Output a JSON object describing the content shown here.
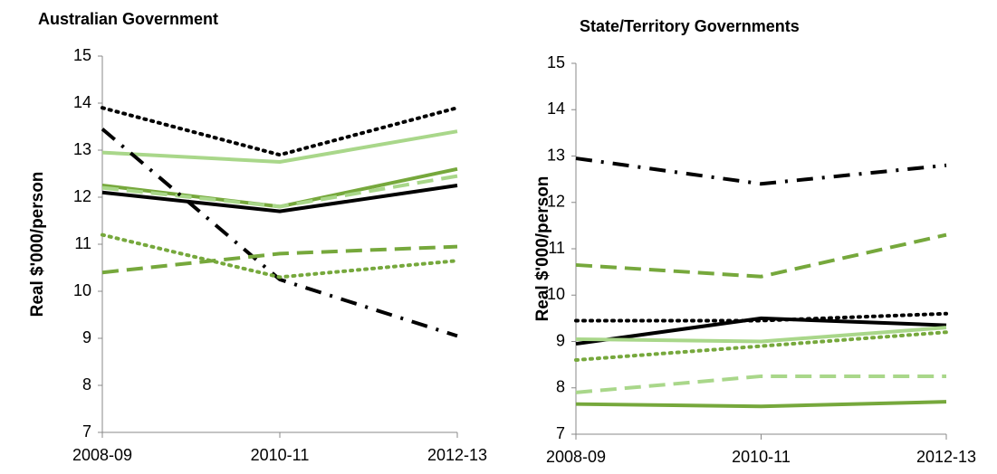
{
  "chart_data": [
    {
      "type": "line",
      "title": "Australian Government",
      "y_label": "Real $'000/person",
      "categories": [
        "2008-09",
        "2010-11",
        "2012-13"
      ],
      "ylim": [
        7,
        15
      ],
      "yticks": [
        7,
        8,
        9,
        10,
        11,
        12,
        13,
        14,
        15
      ],
      "series": [
        {
          "color": "#000000",
          "dash": "dot",
          "values": [
            13.9,
            12.9,
            13.9
          ]
        },
        {
          "color": "#a9d78a",
          "dash": "solid",
          "values": [
            12.95,
            12.75,
            13.4
          ]
        },
        {
          "color": "#76a83c",
          "dash": "solid",
          "values": [
            12.25,
            11.8,
            12.6
          ]
        },
        {
          "color": "#000000",
          "dash": "solid",
          "values": [
            12.1,
            11.7,
            12.25
          ]
        },
        {
          "color": "#a9d78a",
          "dash": "dash",
          "values": [
            12.2,
            11.8,
            12.45
          ]
        },
        {
          "color": "#000000",
          "dash": "dashdot",
          "values": [
            13.45,
            10.25,
            9.05
          ]
        },
        {
          "color": "#76a83c",
          "dash": "dot",
          "values": [
            11.2,
            10.3,
            10.65
          ]
        },
        {
          "color": "#76a83c",
          "dash": "dash",
          "values": [
            10.4,
            10.8,
            10.95
          ]
        }
      ]
    },
    {
      "type": "line",
      "title": "State/Territory Governments",
      "y_label": "Real $'000/person",
      "categories": [
        "2008-09",
        "2010-11",
        "2012-13"
      ],
      "ylim": [
        7,
        15
      ],
      "yticks": [
        7,
        8,
        9,
        10,
        11,
        12,
        13,
        14,
        15
      ],
      "series": [
        {
          "color": "#000000",
          "dash": "dashdot",
          "values": [
            12.95,
            12.4,
            12.8
          ]
        },
        {
          "color": "#76a83c",
          "dash": "dash",
          "values": [
            10.65,
            10.4,
            11.3
          ]
        },
        {
          "color": "#000000",
          "dash": "dot",
          "values": [
            9.45,
            9.45,
            9.6
          ]
        },
        {
          "color": "#000000",
          "dash": "solid",
          "values": [
            8.95,
            9.5,
            9.35
          ]
        },
        {
          "color": "#a9d78a",
          "dash": "solid",
          "values": [
            9.05,
            9.0,
            9.3
          ]
        },
        {
          "color": "#76a83c",
          "dash": "dot",
          "values": [
            8.6,
            8.9,
            9.2
          ]
        },
        {
          "color": "#a9d78a",
          "dash": "dash",
          "values": [
            7.9,
            8.25,
            8.25
          ]
        },
        {
          "color": "#76a83c",
          "dash": "solid",
          "values": [
            7.65,
            7.6,
            7.7
          ]
        }
      ]
    }
  ]
}
